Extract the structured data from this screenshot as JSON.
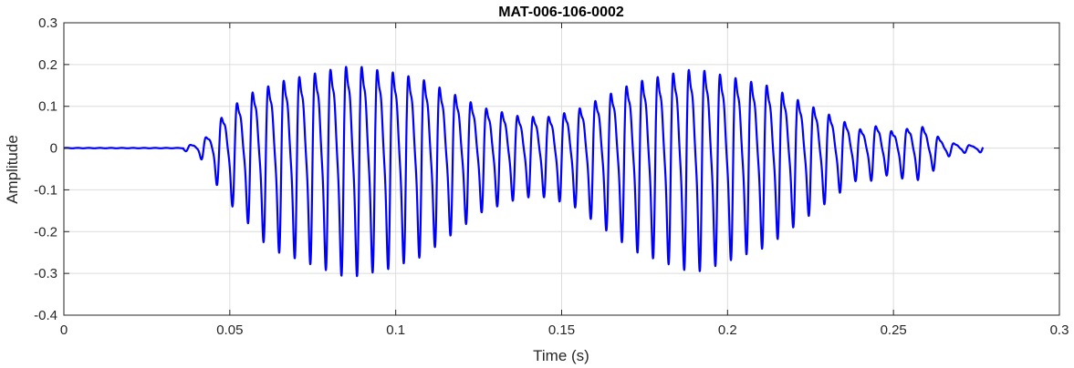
{
  "chart_data": {
    "type": "line",
    "title": "MAT-006-106-0002",
    "xlabel": "Time (s)",
    "ylabel": "Amplitude",
    "xlim": [
      0,
      0.3
    ],
    "ylim": [
      -0.4,
      0.3
    ],
    "grid": true,
    "x_ticks": [
      0,
      0.05,
      0.1,
      0.15,
      0.2,
      0.25,
      0.3
    ],
    "x_tick_labels": [
      "0",
      "0.05",
      "0.1",
      "0.15",
      "0.2",
      "0.25",
      "0.3"
    ],
    "y_ticks": [
      -0.4,
      -0.3,
      -0.2,
      -0.1,
      0,
      0.1,
      0.2,
      0.3
    ],
    "y_tick_labels": [
      "-0.4",
      "-0.3",
      "-0.2",
      "-0.1",
      "0",
      "0.1",
      "0.2",
      "0.3"
    ],
    "series": [
      {
        "color": "#0000ff",
        "x": [
          0,
          0.036,
          0.038,
          0.04,
          0.042,
          0.044,
          0.046,
          0.048,
          0.05,
          0.052,
          0.054,
          0.056,
          0.058,
          0.06,
          0.062,
          0.064,
          0.066,
          0.068,
          0.07,
          0.072,
          0.074,
          0.076,
          0.078,
          0.08,
          0.082,
          0.084,
          0.086,
          0.088,
          0.09,
          0.092,
          0.094,
          0.096,
          0.098,
          0.1,
          0.102,
          0.104,
          0.106,
          0.108,
          0.11,
          0.112,
          0.114,
          0.116,
          0.118,
          0.12,
          0.122,
          0.124,
          0.126,
          0.128,
          0.13,
          0.132,
          0.134,
          0.136,
          0.138,
          0.14,
          0.142,
          0.144,
          0.146,
          0.148,
          0.15,
          0.152,
          0.154,
          0.156,
          0.158,
          0.16,
          0.162,
          0.164,
          0.166,
          0.168,
          0.17,
          0.172,
          0.174,
          0.176,
          0.178,
          0.18,
          0.182,
          0.184,
          0.186,
          0.188,
          0.19,
          0.192,
          0.194,
          0.196,
          0.198,
          0.2,
          0.202,
          0.204,
          0.206,
          0.208,
          0.21,
          0.212,
          0.214,
          0.216,
          0.218,
          0.22,
          0.222,
          0.224,
          0.226,
          0.228,
          0.23,
          0.232,
          0.234,
          0.236,
          0.238,
          0.24,
          0.242,
          0.244,
          0.246,
          0.248,
          0.25,
          0.252,
          0.254,
          0.256,
          0.258,
          0.26,
          0.262,
          0.264,
          0.266,
          0.268,
          0.27,
          0.272,
          0.274,
          0.277
        ],
        "y_envelope": [
          0,
          0.005,
          0.01,
          0.012,
          0.03,
          0.04,
          0.08,
          0.1,
          0.12,
          0.14,
          0.15,
          0.17,
          0.18,
          0.19,
          0.2,
          0.21,
          0.215,
          0.22,
          0.225,
          0.23,
          0.235,
          0.24,
          0.245,
          0.25,
          0.255,
          0.26,
          0.26,
          0.26,
          0.26,
          0.255,
          0.25,
          0.25,
          0.245,
          0.24,
          0.235,
          0.23,
          0.225,
          0.22,
          0.21,
          0.2,
          0.19,
          0.18,
          0.17,
          0.16,
          0.15,
          0.14,
          0.13,
          0.125,
          0.12,
          0.115,
          0.11,
          0.105,
          0.1,
          0.1,
          0.1,
          0.1,
          0.1,
          0.105,
          0.11,
          0.115,
          0.12,
          0.13,
          0.14,
          0.15,
          0.16,
          0.17,
          0.18,
          0.19,
          0.2,
          0.21,
          0.215,
          0.22,
          0.225,
          0.23,
          0.235,
          0.24,
          0.245,
          0.25,
          0.25,
          0.25,
          0.245,
          0.24,
          0.235,
          0.23,
          0.225,
          0.22,
          0.215,
          0.21,
          0.205,
          0.2,
          0.19,
          0.18,
          0.17,
          0.16,
          0.15,
          0.14,
          0.13,
          0.12,
          0.11,
          0.1,
          0.09,
          0.08,
          0.07,
          0.06,
          0.06,
          0.07,
          0.07,
          0.06,
          0.05,
          0.07,
          0.06,
          0.07,
          0.07,
          0.06,
          0.05,
          0.03,
          0.02,
          0.015,
          0.012,
          0.01,
          0.008,
          0.01
        ]
      }
    ]
  }
}
